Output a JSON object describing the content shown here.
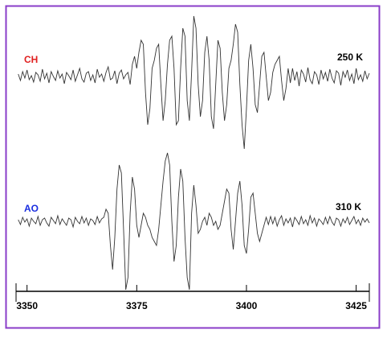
{
  "chart_data": {
    "type": "line",
    "xlim": [
      3347.5,
      3428
    ],
    "xticks": [
      3350,
      3375,
      3400,
      3425
    ],
    "ylim": [
      -90,
      90
    ],
    "x": [
      3348,
      3348.5,
      3349,
      3349.5,
      3350,
      3350.5,
      3351,
      3351.5,
      3352,
      3352.5,
      3353,
      3353.5,
      3354,
      3354.5,
      3355,
      3355.5,
      3356,
      3356.5,
      3357,
      3357.5,
      3358,
      3358.5,
      3359,
      3359.5,
      3360,
      3360.5,
      3361,
      3361.5,
      3362,
      3362.5,
      3363,
      3363.5,
      3364,
      3364.5,
      3365,
      3365.5,
      3366,
      3366.5,
      3367,
      3367.5,
      3368,
      3368.5,
      3369,
      3369.5,
      3370,
      3370.5,
      3371,
      3371.5,
      3372,
      3372.5,
      3373,
      3373.5,
      3374,
      3374.5,
      3375,
      3375.5,
      3376,
      3376.5,
      3377,
      3377.5,
      3378,
      3378.5,
      3379,
      3379.5,
      3380,
      3380.5,
      3381,
      3381.5,
      3382,
      3382.5,
      3383,
      3383.5,
      3384,
      3384.5,
      3385,
      3385.5,
      3386,
      3386.5,
      3387,
      3387.5,
      3388,
      3388.5,
      3389,
      3389.5,
      3390,
      3390.5,
      3391,
      3391.5,
      3392,
      3392.5,
      3393,
      3393.5,
      3394,
      3394.5,
      3395,
      3395.5,
      3396,
      3396.5,
      3397,
      3397.5,
      3398,
      3398.5,
      3399,
      3399.5,
      3400,
      3400.5,
      3401,
      3401.5,
      3402,
      3402.5,
      3403,
      3403.5,
      3404,
      3404.5,
      3405,
      3405.5,
      3406,
      3406.5,
      3407,
      3407.5,
      3408,
      3408.5,
      3409,
      3409.5,
      3410,
      3410.5,
      3411,
      3411.5,
      3412,
      3412.5,
      3413,
      3413.5,
      3414,
      3414.5,
      3415,
      3415.5,
      3416,
      3416.5,
      3417,
      3417.5,
      3418,
      3418.5,
      3419,
      3419.5,
      3420,
      3420.5,
      3421,
      3421.5,
      3422,
      3422.5,
      3423,
      3423.5,
      3424,
      3424.5,
      3425,
      3425.5,
      3426,
      3426.5,
      3427,
      3427.5,
      3428
    ],
    "series": [
      {
        "name": "CH",
        "annotation": "250 K",
        "color": "#333333",
        "label_color": "#e02020",
        "values": [
          3,
          -5,
          6,
          -2,
          8,
          -4,
          1,
          -7,
          5,
          2,
          -6,
          9,
          -3,
          4,
          -8,
          6,
          0,
          -5,
          7,
          -2,
          3,
          -9,
          5,
          1,
          -4,
          8,
          -6,
          2,
          10,
          -3,
          -7,
          4,
          6,
          -5,
          2,
          -8,
          9,
          -1,
          3,
          -6,
          5,
          12,
          -4,
          -2,
          7,
          -9,
          4,
          8,
          -3,
          2,
          5,
          -10,
          15,
          25,
          10,
          30,
          45,
          40,
          -20,
          -60,
          -40,
          10,
          20,
          35,
          40,
          -10,
          -55,
          -30,
          15,
          45,
          50,
          10,
          -60,
          -55,
          10,
          60,
          50,
          -30,
          -55,
          5,
          75,
          60,
          -10,
          -50,
          -30,
          30,
          50,
          20,
          -50,
          -65,
          -10,
          45,
          35,
          -20,
          -55,
          -35,
          10,
          20,
          40,
          65,
          55,
          -10,
          -60,
          -90,
          -40,
          20,
          40,
          10,
          -35,
          -45,
          -10,
          25,
          30,
          0,
          -30,
          -20,
          5,
          15,
          20,
          25,
          -5,
          -30,
          -15,
          10,
          -8,
          10,
          -5,
          6,
          -12,
          8,
          3,
          -7,
          11,
          -4,
          -9,
          6,
          2,
          -10,
          8,
          -3,
          5,
          -6,
          9,
          -2,
          -8,
          7,
          4,
          -11,
          6,
          -1,
          8,
          -5,
          3,
          -9,
          10,
          -4,
          2,
          -6,
          7,
          -3,
          4
        ]
      },
      {
        "name": "AO",
        "annotation": "310 K",
        "color": "#333333",
        "label_color": "#1a2ee0",
        "values": [
          2,
          -4,
          5,
          -1,
          3,
          -6,
          4,
          0,
          -3,
          6,
          -5,
          2,
          4,
          -2,
          -6,
          5,
          1,
          -3,
          7,
          -4,
          3,
          -1,
          -5,
          4,
          2,
          -7,
          5,
          0,
          -3,
          6,
          -2,
          4,
          -5,
          3,
          1,
          -4,
          6,
          -2,
          3,
          5,
          15,
          10,
          -30,
          -60,
          -20,
          40,
          70,
          60,
          -10,
          -85,
          -70,
          10,
          55,
          40,
          -5,
          -20,
          -5,
          10,
          5,
          -5,
          -10,
          -20,
          -25,
          -30,
          -10,
          20,
          50,
          75,
          85,
          70,
          0,
          -50,
          -30,
          30,
          65,
          50,
          -20,
          -70,
          -85,
          10,
          45,
          20,
          -15,
          -10,
          0,
          5,
          -5,
          10,
          5,
          -5,
          0,
          -10,
          -5,
          10,
          25,
          40,
          35,
          -10,
          -35,
          0,
          35,
          50,
          20,
          -30,
          -40,
          -10,
          30,
          35,
          10,
          -15,
          -25,
          -15,
          -5,
          5,
          -4,
          6,
          -3,
          5,
          -6,
          2,
          7,
          -5,
          3,
          -2,
          4,
          -7,
          5,
          1,
          -4,
          6,
          -3,
          2,
          -5,
          7,
          -2,
          4,
          -6,
          3,
          0,
          -4,
          5,
          -3,
          6,
          -1,
          -5,
          4,
          2,
          -6,
          3,
          -2,
          5,
          -4,
          1,
          6,
          -3,
          2,
          -5,
          4,
          -1,
          3,
          -2
        ]
      }
    ]
  }
}
